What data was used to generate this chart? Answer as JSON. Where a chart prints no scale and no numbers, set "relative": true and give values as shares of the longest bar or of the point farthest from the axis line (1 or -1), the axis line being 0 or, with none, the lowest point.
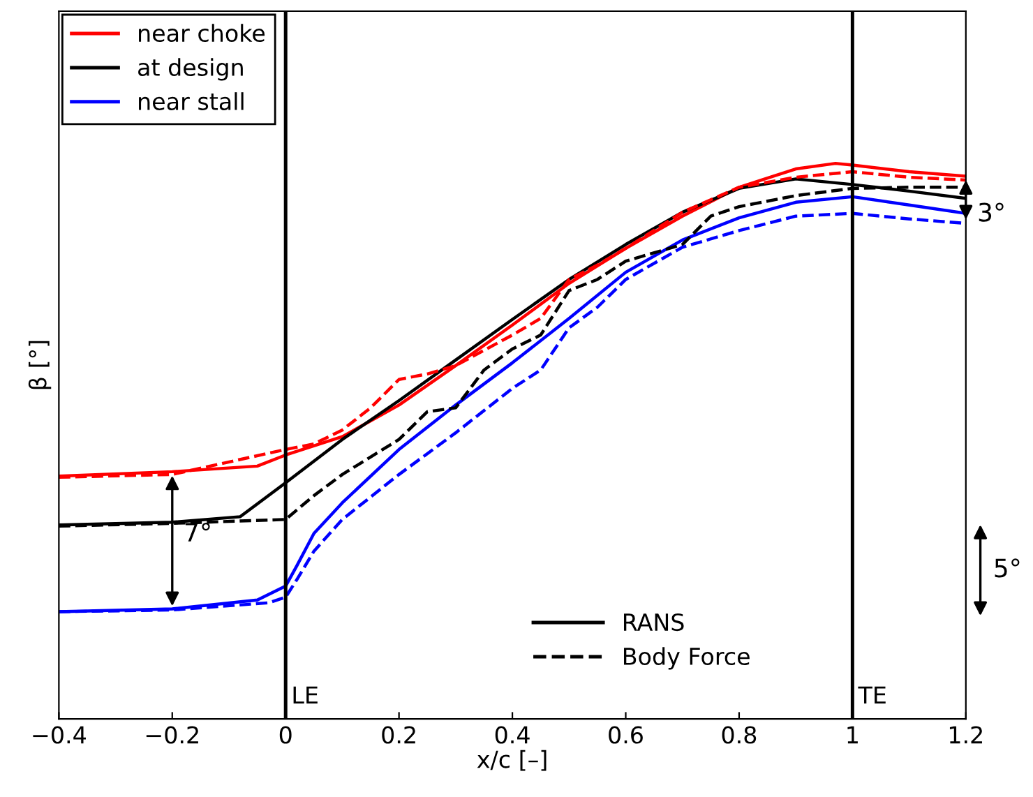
{
  "chart_data": {
    "type": "line",
    "relative": true,
    "xlabel": "x/c [–]",
    "ylabel": "β [°]",
    "xlim": [
      -0.4,
      1.2
    ],
    "xticks": [
      {
        "value": -0.4,
        "label": "−0.4"
      },
      {
        "value": -0.2,
        "label": "−0.2"
      },
      0,
      0.2,
      0.4,
      0.6,
      0.8,
      1,
      1.2
    ],
    "tick_labels": "x",
    "grid": false,
    "legend": "top left",
    "series": [
      {
        "name": "near choke",
        "color": "#ff0000",
        "line_style": "solid",
        "x": [
          -0.4,
          -0.2,
          -0.05,
          0,
          0.1,
          0.2,
          0.3,
          0.4,
          0.5,
          0.6,
          0.7,
          0.8,
          0.9,
          0.97,
          1.0,
          1.1,
          1.2
        ],
        "values": [
          0.437,
          0.445,
          0.455,
          0.475,
          0.508,
          0.565,
          0.636,
          0.709,
          0.784,
          0.847,
          0.905,
          0.957,
          0.99,
          1.0,
          0.997,
          0.985,
          0.977
        ]
      },
      {
        "name": "at design",
        "color": "#000000",
        "line_style": "solid",
        "x": [
          -0.4,
          -0.2,
          -0.08,
          0,
          0.1,
          0.2,
          0.3,
          0.4,
          0.5,
          0.6,
          0.7,
          0.8,
          0.9,
          1.0,
          1.1,
          1.2
        ],
        "values": [
          0.349,
          0.354,
          0.364,
          0.425,
          0.503,
          0.573,
          0.646,
          0.719,
          0.791,
          0.854,
          0.912,
          0.955,
          0.972,
          0.962,
          0.95,
          0.937
        ]
      },
      {
        "name": "near stall",
        "color": "#0000ff",
        "line_style": "solid",
        "x": [
          -0.4,
          -0.2,
          -0.05,
          0,
          0.02,
          0.05,
          0.1,
          0.2,
          0.3,
          0.4,
          0.5,
          0.6,
          0.7,
          0.8,
          0.9,
          1.0,
          1.1,
          1.2
        ],
        "values": [
          0.193,
          0.198,
          0.214,
          0.239,
          0.276,
          0.334,
          0.389,
          0.485,
          0.565,
          0.641,
          0.721,
          0.804,
          0.862,
          0.902,
          0.93,
          0.94,
          0.925,
          0.91
        ]
      },
      {
        "color": "#ff0000",
        "line_style": "dashed",
        "x": [
          -0.4,
          -0.2,
          0,
          0.05,
          0.1,
          0.15,
          0.2,
          0.25,
          0.3,
          0.4,
          0.45,
          0.5,
          0.55,
          0.6,
          0.7,
          0.8,
          0.9,
          1.0,
          1.1,
          1.2
        ],
        "values": [
          0.435,
          0.44,
          0.485,
          0.495,
          0.52,
          0.56,
          0.611,
          0.621,
          0.636,
          0.691,
          0.721,
          0.791,
          0.817,
          0.847,
          0.912,
          0.957,
          0.975,
          0.985,
          0.975,
          0.97
        ]
      },
      {
        "color": "#000000",
        "line_style": "dashed",
        "x": [
          -0.4,
          -0.2,
          0,
          0.05,
          0.1,
          0.2,
          0.25,
          0.3,
          0.35,
          0.4,
          0.45,
          0.5,
          0.55,
          0.6,
          0.7,
          0.75,
          0.8,
          0.9,
          1.0,
          1.1,
          1.2
        ],
        "values": [
          0.347,
          0.352,
          0.359,
          0.402,
          0.44,
          0.503,
          0.553,
          0.56,
          0.628,
          0.666,
          0.691,
          0.771,
          0.791,
          0.824,
          0.854,
          0.905,
          0.922,
          0.942,
          0.955,
          0.957,
          0.957
        ]
      },
      {
        "color": "#0000ff",
        "line_style": "dashed",
        "x": [
          -0.4,
          -0.2,
          -0.03,
          0,
          0.02,
          0.05,
          0.1,
          0.2,
          0.3,
          0.4,
          0.45,
          0.5,
          0.55,
          0.6,
          0.7,
          0.8,
          0.9,
          1.0,
          1.1,
          1.2
        ],
        "values": [
          0.193,
          0.196,
          0.209,
          0.219,
          0.251,
          0.302,
          0.359,
          0.44,
          0.515,
          0.595,
          0.628,
          0.704,
          0.741,
          0.791,
          0.849,
          0.879,
          0.905,
          0.91,
          0.9,
          0.892
        ]
      }
    ],
    "ref_lines": [
      {
        "axis": "x",
        "value": 0,
        "label": "LE",
        "color": "#000000"
      },
      {
        "axis": "x",
        "value": 1,
        "label": "TE",
        "color": "#000000"
      }
    ],
    "annotations": [
      "RANS",
      "Body Force",
      {
        "text": "7°",
        "x": -0.2,
        "y": 0.354
      },
      {
        "text": "3°",
        "x": 1.2,
        "y": 0.93
      },
      "5°"
    ]
  }
}
